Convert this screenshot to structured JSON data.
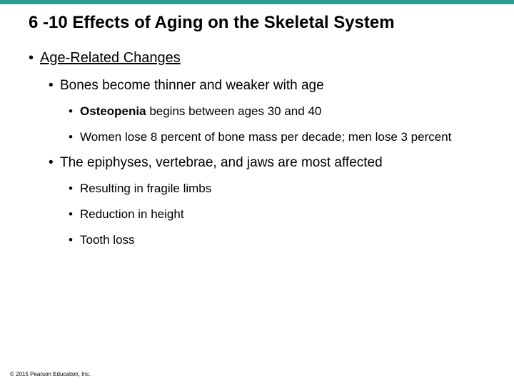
{
  "colors": {
    "top_bar": "#2a9d8f",
    "title_text": "#000000",
    "body_text": "#000000",
    "background": "#ffffff"
  },
  "typography": {
    "title_fontsize": 24,
    "l1_fontsize": 20,
    "l2_fontsize": 19,
    "l3_fontsize": 17,
    "copyright_fontsize": 8,
    "font_family": "Arial"
  },
  "title": "6 -10 Effects of Aging on the Skeletal System",
  "l1": {
    "label": "Age-Related Changes"
  },
  "l2a": "Bones become thinner and weaker with age",
  "l3a_bold": "Osteopenia",
  "l3a_rest": " begins between ages 30 and 40",
  "l3b": "Women lose 8 percent of bone mass per decade; men lose 3 percent",
  "l2b": "The epiphyses, vertebrae, and jaws are most affected",
  "l3c": "Resulting in fragile limbs",
  "l3d": "Reduction in height",
  "l3e": "Tooth loss",
  "copyright": "© 2015 Pearson Education, Inc."
}
